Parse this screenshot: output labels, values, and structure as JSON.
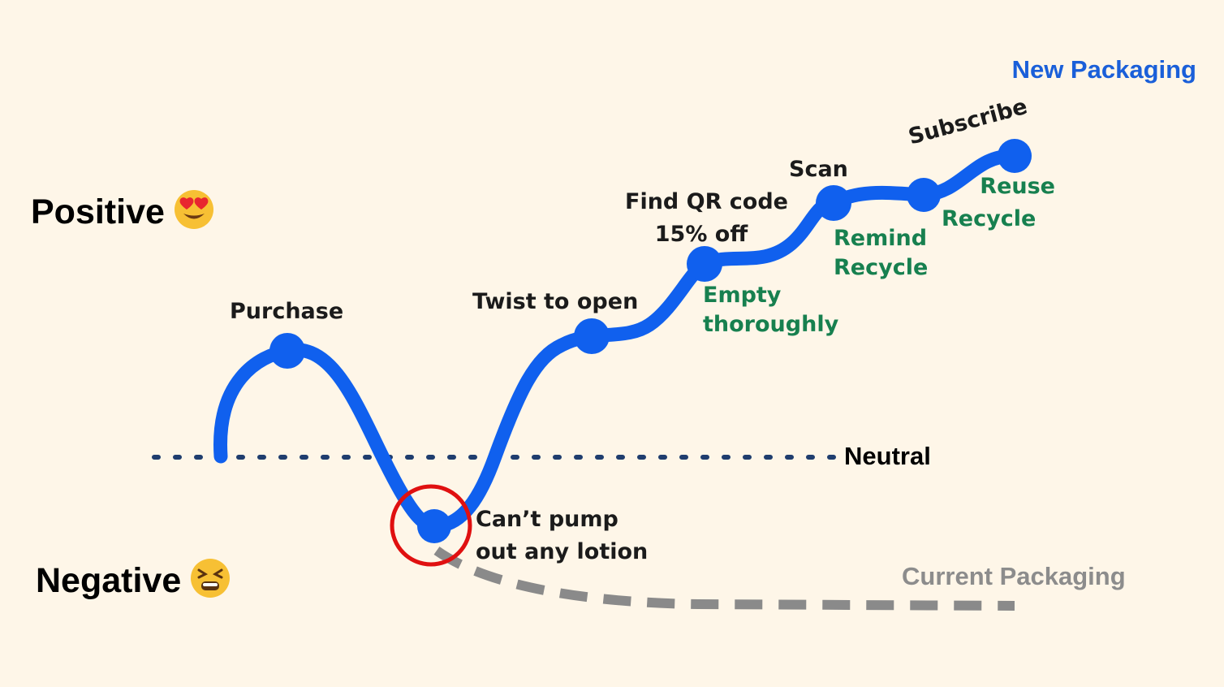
{
  "axis": {
    "positive_label": "Positive",
    "negative_label": "Negative",
    "positive_emoji": "heart-eyes-emoji",
    "negative_emoji": "tired-face-emoji",
    "neutral_label": "Neutral"
  },
  "legend": {
    "new_packaging": "New Packaging",
    "current_packaging": "Current Packaging"
  },
  "stages": {
    "purchase": "Purchase",
    "pain": [
      "Can’t pump",
      "out any lotion"
    ],
    "twist": "Twist to open",
    "qr": [
      "Find QR code",
      "15% off"
    ],
    "empty": [
      "Empty",
      "thoroughly"
    ],
    "scan": "Scan",
    "remind": [
      "Remind",
      "Recycle"
    ],
    "subscribe": "Subscribe",
    "reuse": [
      "Reuse",
      "Recycle"
    ]
  },
  "colors": {
    "background": "#fef6e8",
    "new_curve": "#1060ee",
    "current_curve": "#8a8a8a",
    "highlight_circle": "#e01010",
    "neutral_line": "#1f3d6e",
    "new_label": "#1a5fd9",
    "green_label": "#17804f"
  }
}
